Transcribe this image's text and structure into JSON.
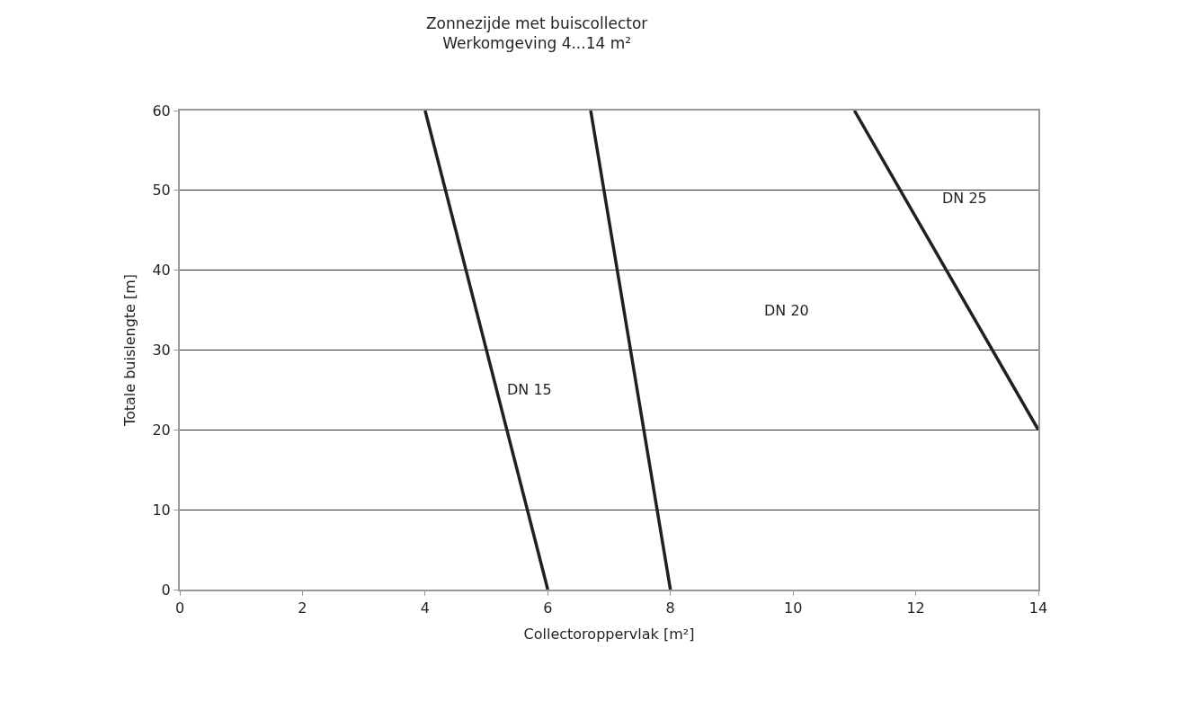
{
  "chart_data": {
    "type": "line",
    "title": "Zonnezijde met buiscollector",
    "subtitle": "Werkomgeving 4...14 m²",
    "xlabel": "Collectoroppervlak [m²]",
    "ylabel": "Totale buislengte [m]",
    "series": [
      {
        "color": "#231f20",
        "x": [
          4,
          6
        ],
        "values": [
          60,
          0
        ]
      },
      {
        "color": "#231f20",
        "x": [
          6.7,
          8
        ],
        "values": [
          60,
          0
        ]
      },
      {
        "color": "#231f20",
        "x": [
          11,
          14
        ],
        "values": [
          60,
          20
        ]
      }
    ],
    "annotations": [
      "DN 15",
      "DN 20",
      "DN 25"
    ],
    "xlim": [
      0,
      14
    ],
    "xticks": [
      0,
      2,
      4,
      6,
      8,
      10,
      12,
      14
    ],
    "ylim": [
      0,
      60
    ],
    "yticks": [
      0,
      10,
      20,
      30,
      40,
      50,
      60
    ],
    "grid": "y",
    "marker": "none",
    "line_style": "solid"
  }
}
